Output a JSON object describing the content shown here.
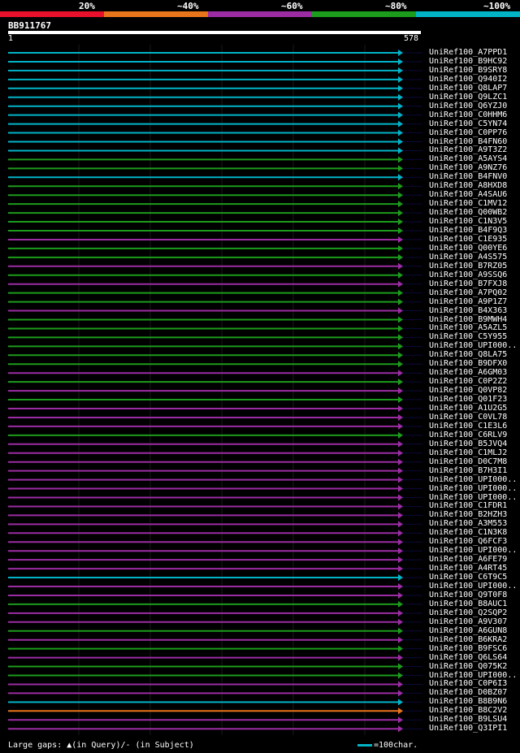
{
  "legend": [
    {
      "label": "20%",
      "color": "#e8102c"
    },
    {
      "label": "~40%",
      "color": "#e8741c"
    },
    {
      "label": "~60%",
      "color": "#9c2ca4"
    },
    {
      "label": "~80%",
      "color": "#1c9c1c"
    },
    {
      "label": "~100%",
      "color": "#00b4c8"
    }
  ],
  "query": {
    "name": "BB911767",
    "start": "1",
    "end": "578"
  },
  "hits": [
    {
      "name": "UniRef100_A7PPD1",
      "color": "#00b4c8"
    },
    {
      "name": "UniRef100_B9HC92",
      "color": "#00b4c8"
    },
    {
      "name": "UniRef100_B9SRY8",
      "color": "#00b4c8"
    },
    {
      "name": "UniRef100_Q940I2",
      "color": "#00b4c8"
    },
    {
      "name": "UniRef100_Q8LAP7",
      "color": "#00b4c8"
    },
    {
      "name": "UniRef100_Q9LZC1",
      "color": "#00b4c8"
    },
    {
      "name": "UniRef100_Q6YZJ0",
      "color": "#00b4c8"
    },
    {
      "name": "UniRef100_C0HHM6",
      "color": "#00b4c8"
    },
    {
      "name": "UniRef100_C5YN74",
      "color": "#00b4c8"
    },
    {
      "name": "UniRef100_C0PP76",
      "color": "#00b4c8"
    },
    {
      "name": "UniRef100_B4FN60",
      "color": "#00b4c8"
    },
    {
      "name": "UniRef100_A9T3Z2",
      "color": "#00b4c8"
    },
    {
      "name": "UniRef100_A5AYS4",
      "color": "#1c9c1c"
    },
    {
      "name": "UniRef100_A9NZ76",
      "color": "#1c9c1c"
    },
    {
      "name": "UniRef100_B4FNV0",
      "color": "#00b4c8"
    },
    {
      "name": "UniRef100_A8HXD8",
      "color": "#1c9c1c"
    },
    {
      "name": "UniRef100_A4SAU6",
      "color": "#1c9c1c"
    },
    {
      "name": "UniRef100_C1MV12",
      "color": "#1c9c1c"
    },
    {
      "name": "UniRef100_Q00WB2",
      "color": "#1c9c1c"
    },
    {
      "name": "UniRef100_C1N3V5",
      "color": "#1c9c1c"
    },
    {
      "name": "UniRef100_B4F9Q3",
      "color": "#1c9c1c"
    },
    {
      "name": "UniRef100_C1E935",
      "color": "#9c2ca4"
    },
    {
      "name": "UniRef100_Q00YE6",
      "color": "#1c9c1c"
    },
    {
      "name": "UniRef100_A4S575",
      "color": "#1c9c1c"
    },
    {
      "name": "UniRef100_B7RZ05",
      "color": "#9c2ca4"
    },
    {
      "name": "UniRef100_A9SSQ6",
      "color": "#1c9c1c"
    },
    {
      "name": "UniRef100_B7FXJ8",
      "color": "#9c2ca4"
    },
    {
      "name": "UniRef100_A7PQ02",
      "color": "#1c9c1c"
    },
    {
      "name": "UniRef100_A9P1Z7",
      "color": "#1c9c1c"
    },
    {
      "name": "UniRef100_B4X363",
      "color": "#9c2ca4"
    },
    {
      "name": "UniRef100_B9MWH4",
      "color": "#1c9c1c"
    },
    {
      "name": "UniRef100_A5AZL5",
      "color": "#1c9c1c"
    },
    {
      "name": "UniRef100_C5Y955",
      "color": "#1c9c1c"
    },
    {
      "name": "UniRef100_UPI000..",
      "color": "#1c9c1c"
    },
    {
      "name": "UniRef100_Q8LA75",
      "color": "#1c9c1c"
    },
    {
      "name": "UniRef100_B9DFX0",
      "color": "#1c9c1c"
    },
    {
      "name": "UniRef100_A6GM03",
      "color": "#9c2ca4"
    },
    {
      "name": "UniRef100_C0P2Z2",
      "color": "#1c9c1c"
    },
    {
      "name": "UniRef100_Q0VP82",
      "color": "#9c2ca4"
    },
    {
      "name": "UniRef100_Q01F23",
      "color": "#1c9c1c"
    },
    {
      "name": "UniRef100_A1U2G5",
      "color": "#9c2ca4"
    },
    {
      "name": "UniRef100_C0VL78",
      "color": "#9c2ca4"
    },
    {
      "name": "UniRef100_C1E3L6",
      "color": "#9c2ca4"
    },
    {
      "name": "UniRef100_C6RLV9",
      "color": "#1c9c1c"
    },
    {
      "name": "UniRef100_B5JVQ4",
      "color": "#9c2ca4"
    },
    {
      "name": "UniRef100_C1MLJ2",
      "color": "#9c2ca4"
    },
    {
      "name": "UniRef100_D0C7M8",
      "color": "#9c2ca4"
    },
    {
      "name": "UniRef100_B7H3I1",
      "color": "#9c2ca4"
    },
    {
      "name": "UniRef100_UPI000..",
      "color": "#9c2ca4"
    },
    {
      "name": "UniRef100_UPI000..",
      "color": "#9c2ca4"
    },
    {
      "name": "UniRef100_UPI000..",
      "color": "#9c2ca4"
    },
    {
      "name": "UniRef100_C1FDR1",
      "color": "#9c2ca4"
    },
    {
      "name": "UniRef100_B2HZH3",
      "color": "#9c2ca4"
    },
    {
      "name": "UniRef100_A3M553",
      "color": "#9c2ca4"
    },
    {
      "name": "UniRef100_C1N3K8",
      "color": "#9c2ca4"
    },
    {
      "name": "UniRef100_Q6FCF3",
      "color": "#9c2ca4"
    },
    {
      "name": "UniRef100_UPI000..",
      "color": "#9c2ca4"
    },
    {
      "name": "UniRef100_A6FE79",
      "color": "#9c2ca4"
    },
    {
      "name": "UniRef100_A4RT45",
      "color": "#9c2ca4"
    },
    {
      "name": "UniRef100_C6T9C5",
      "color": "#00b4c8"
    },
    {
      "name": "UniRef100_UPI000..",
      "color": "#9c2ca4"
    },
    {
      "name": "UniRef100_Q9T0F8",
      "color": "#9c2ca4"
    },
    {
      "name": "UniRef100_B8AUC1",
      "color": "#1c9c1c"
    },
    {
      "name": "UniRef100_Q2SQP2",
      "color": "#9c2ca4"
    },
    {
      "name": "UniRef100_A9V307",
      "color": "#9c2ca4"
    },
    {
      "name": "UniRef100_A6GUN8",
      "color": "#1c9c1c"
    },
    {
      "name": "UniRef100_B6KRA2",
      "color": "#9c2ca4"
    },
    {
      "name": "UniRef100_B9FSC6",
      "color": "#1c9c1c"
    },
    {
      "name": "UniRef100_Q6LS64",
      "color": "#9c2ca4"
    },
    {
      "name": "UniRef100_Q075K2",
      "color": "#1c9c1c"
    },
    {
      "name": "UniRef100_UPI000..",
      "color": "#1c9c1c"
    },
    {
      "name": "UniRef100_C0P6I3",
      "color": "#9c2ca4"
    },
    {
      "name": "UniRef100_D0BZ07",
      "color": "#9c2ca4"
    },
    {
      "name": "UniRef100_B8B9N6",
      "color": "#00b4c8"
    },
    {
      "name": "UniRef100_B8C2V2",
      "color": "#e8741c"
    },
    {
      "name": "UniRef100_B9LSU4",
      "color": "#9c2ca4"
    },
    {
      "name": "UniRef100_Q3IPI1",
      "color": "#9c2ca4"
    }
  ],
  "footer": {
    "text": "Large gaps: ▲(in Query)/- (in Subject)"
  },
  "scale": {
    "text": "=100char."
  }
}
